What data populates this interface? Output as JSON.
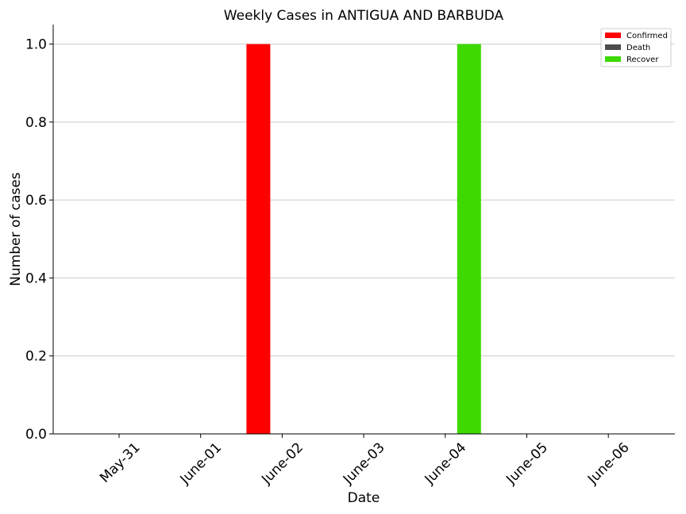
{
  "chart_data": {
    "type": "bar",
    "title": "Weekly Cases in ANTIGUA AND BARBUDA",
    "xlabel": "Date",
    "ylabel": "Number of cases",
    "categories": [
      "May-31",
      "June-01",
      "June-02",
      "June-03",
      "June-04",
      "June-05",
      "June-06"
    ],
    "series": [
      {
        "name": "Confirmed",
        "color": "#ff0000",
        "values": [
          0,
          0,
          1,
          0,
          0,
          0,
          0
        ]
      },
      {
        "name": "Death",
        "color": "#4d4d4d",
        "values": [
          0,
          0,
          0,
          0,
          0,
          0,
          0
        ]
      },
      {
        "name": "Recover",
        "color": "#3dd900",
        "values": [
          0,
          0,
          0,
          0,
          1,
          0,
          0
        ]
      }
    ],
    "ylim": [
      0,
      1.05
    ],
    "yticks": [
      "0.0",
      "0.2",
      "0.4",
      "0.6",
      "0.8",
      "1.0"
    ],
    "grid": "y",
    "legend_position": "top-right"
  }
}
